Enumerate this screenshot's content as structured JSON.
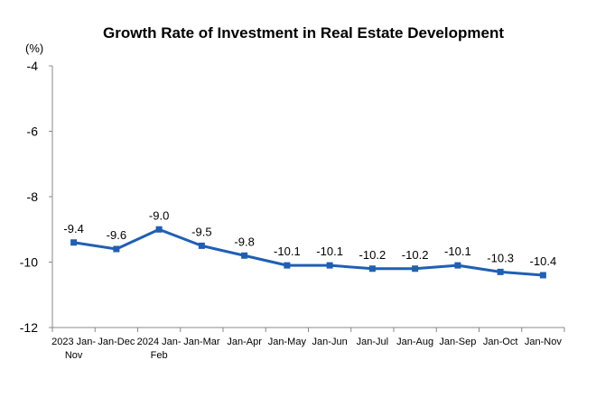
{
  "chart_data": {
    "type": "line",
    "title": "Growth Rate of Investment in Real Estate Development",
    "ylabel": "(%)",
    "xlabel": "",
    "categories": [
      "2023 Jan-Nov",
      "Jan-Dec",
      "2024 Jan-Feb",
      "Jan-Mar",
      "Jan-Apr",
      "Jan-May",
      "Jan-Jun",
      "Jan-Jul",
      "Jan-Aug",
      "Jan-Sep",
      "Jan-Oct",
      "Jan-Nov"
    ],
    "category_lines": [
      [
        "2023 Jan-",
        "Nov"
      ],
      [
        "Jan-Dec"
      ],
      [
        "2024 Jan-",
        "Feb"
      ],
      [
        "Jan-Mar"
      ],
      [
        "Jan-Apr"
      ],
      [
        "Jan-May"
      ],
      [
        "Jan-Jun"
      ],
      [
        "Jan-Jul"
      ],
      [
        "Jan-Aug"
      ],
      [
        "Jan-Sep"
      ],
      [
        "Jan-Oct"
      ],
      [
        "Jan-Nov"
      ]
    ],
    "series": [
      {
        "values": [
          -9.4,
          -9.6,
          -9.0,
          -9.5,
          -9.8,
          -10.1,
          -10.1,
          -10.2,
          -10.2,
          -10.1,
          -10.3,
          -10.4
        ],
        "labels": [
          "-9.4",
          "-9.6",
          "-9.0",
          "-9.5",
          "-9.8",
          "-10.1",
          "-10.1",
          "-10.2",
          "-10.2",
          "-10.1",
          "-10.3",
          "-10.4"
        ],
        "color": "#1f5fb5"
      }
    ],
    "ylim": [
      -12,
      -4
    ],
    "yticks": [
      "-4",
      "-6",
      "-8",
      "-10",
      "-12"
    ],
    "ytick_values": [
      -4,
      -6,
      -8,
      -10,
      -12
    ],
    "grid": false,
    "legend": "none",
    "colors": {
      "line": "#1f5fb5",
      "axis": "#888888",
      "text": "#000000"
    }
  }
}
